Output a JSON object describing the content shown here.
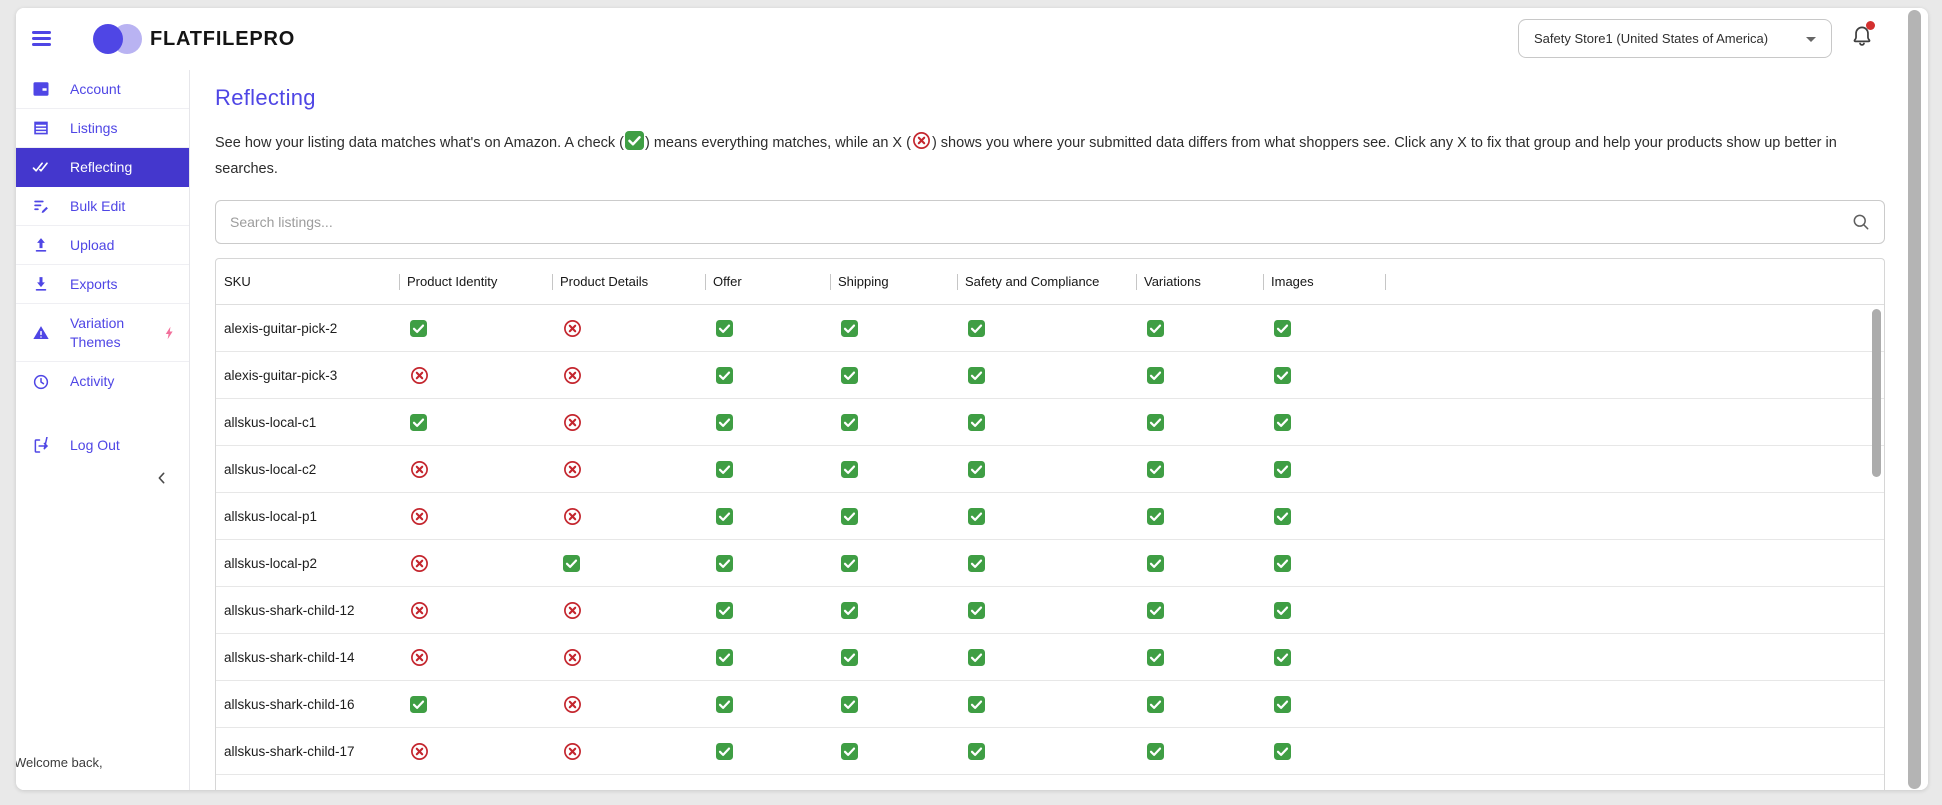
{
  "colors": {
    "accent": "#4f46e5",
    "active_nav_bg": "#4437cd",
    "check_green": "#3f9e44",
    "error_red": "#c4262e",
    "notification_red": "#d3302f"
  },
  "header": {
    "brand": "FLATFILEPRO",
    "store_selector": {
      "value": "Safety Store1 (United States of America)"
    }
  },
  "sidebar": {
    "items": [
      {
        "id": "account",
        "label": "Account",
        "icon": "account-icon",
        "active": false
      },
      {
        "id": "listings",
        "label": "Listings",
        "icon": "listings-icon",
        "active": false
      },
      {
        "id": "reflecting",
        "label": "Reflecting",
        "icon": "double-check-icon",
        "active": true
      },
      {
        "id": "bulk-edit",
        "label": "Bulk Edit",
        "icon": "bulk-edit-icon",
        "active": false
      },
      {
        "id": "upload",
        "label": "Upload",
        "icon": "upload-icon",
        "active": false
      },
      {
        "id": "exports",
        "label": "Exports",
        "icon": "download-icon",
        "active": false
      },
      {
        "id": "variation-themes",
        "label": "Variation Themes",
        "icon": "warning-triangle-icon",
        "active": false,
        "bolt": true
      },
      {
        "id": "activity",
        "label": "Activity",
        "icon": "clock-icon",
        "active": false
      }
    ],
    "logout": "Log Out",
    "welcome": "Welcome back,"
  },
  "main": {
    "title": "Reflecting",
    "description": {
      "part1": "See how your listing data matches what's on Amazon. A check (",
      "part2": ") means everything matches, while an X (",
      "part3": ") shows you where your submitted data differs from what shoppers see. Click any X to fix that group and help your products show up better in searches."
    },
    "search": {
      "placeholder": "Search listings..."
    },
    "table": {
      "columns": [
        "SKU",
        "Product Identity",
        "Product Details",
        "Offer",
        "Shipping",
        "Safety and Compliance",
        "Variations",
        "Images"
      ],
      "rows": [
        {
          "sku": "alexis-guitar-pick-2",
          "statuses": [
            "check",
            "x",
            "check",
            "check",
            "check",
            "check",
            "check"
          ]
        },
        {
          "sku": "alexis-guitar-pick-3",
          "statuses": [
            "x",
            "x",
            "check",
            "check",
            "check",
            "check",
            "check"
          ]
        },
        {
          "sku": "allskus-local-c1",
          "statuses": [
            "check",
            "x",
            "check",
            "check",
            "check",
            "check",
            "check"
          ]
        },
        {
          "sku": "allskus-local-c2",
          "statuses": [
            "x",
            "x",
            "check",
            "check",
            "check",
            "check",
            "check"
          ]
        },
        {
          "sku": "allskus-local-p1",
          "statuses": [
            "x",
            "x",
            "check",
            "check",
            "check",
            "check",
            "check"
          ]
        },
        {
          "sku": "allskus-local-p2",
          "statuses": [
            "x",
            "check",
            "check",
            "check",
            "check",
            "check",
            "check"
          ]
        },
        {
          "sku": "allskus-shark-child-12",
          "statuses": [
            "x",
            "x",
            "check",
            "check",
            "check",
            "check",
            "check"
          ]
        },
        {
          "sku": "allskus-shark-child-14",
          "statuses": [
            "x",
            "x",
            "check",
            "check",
            "check",
            "check",
            "check"
          ]
        },
        {
          "sku": "allskus-shark-child-16",
          "statuses": [
            "check",
            "x",
            "check",
            "check",
            "check",
            "check",
            "check"
          ]
        },
        {
          "sku": "allskus-shark-child-17",
          "statuses": [
            "x",
            "x",
            "check",
            "check",
            "check",
            "check",
            "check"
          ]
        }
      ]
    }
  }
}
